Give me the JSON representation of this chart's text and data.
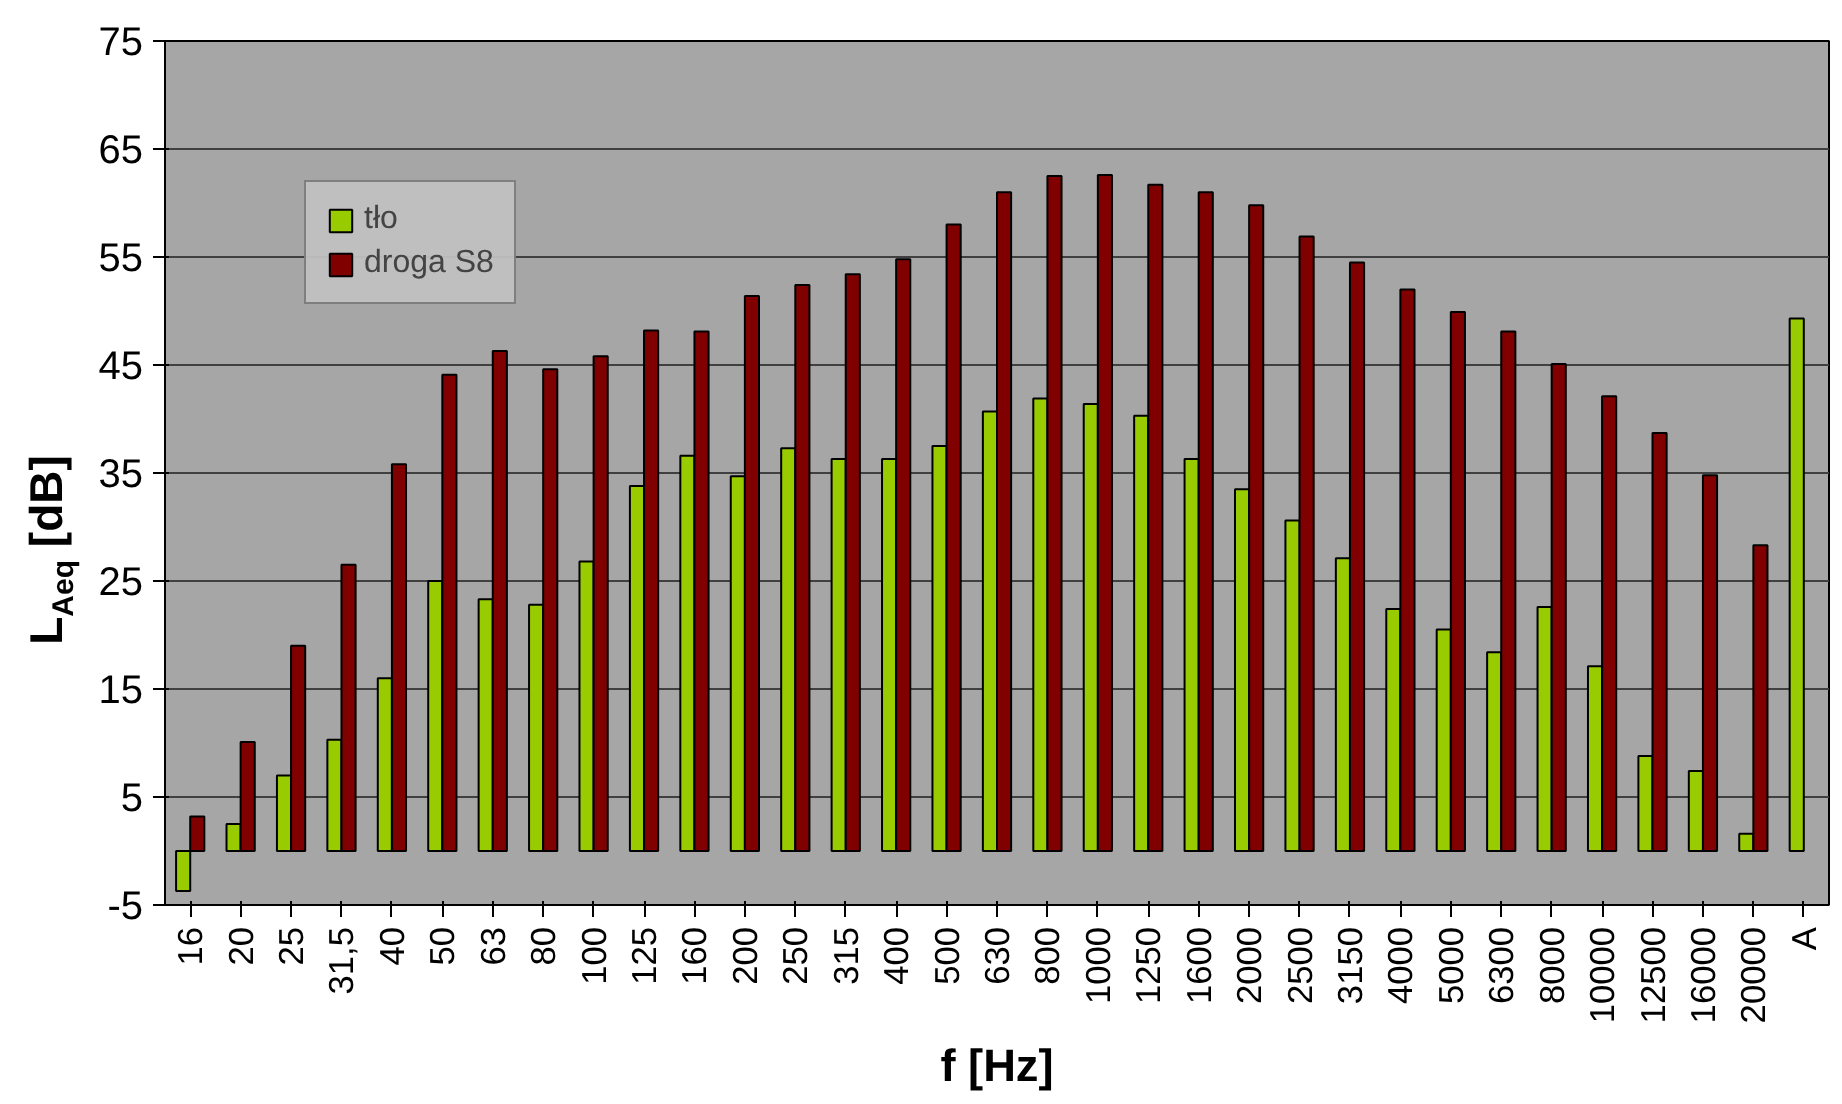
{
  "chart_data": {
    "type": "bar",
    "xlabel": "f [Hz]",
    "ylabel": "L$_{Aeq}$ [dB]",
    "categories": [
      "16",
      "20",
      "25",
      "31,5",
      "40",
      "50",
      "63",
      "80",
      "100",
      "125",
      "160",
      "200",
      "250",
      "315",
      "400",
      "500",
      "630",
      "800",
      "1000",
      "1250",
      "1600",
      "2000",
      "2500",
      "3150",
      "4000",
      "5000",
      "6300",
      "8000",
      "10000",
      "12500",
      "16000",
      "20000",
      "A"
    ],
    "series": [
      {
        "name": "tło",
        "color": "#99cc00",
        "values": [
          -3.7,
          2.5,
          7,
          10.3,
          16,
          25,
          23.3,
          22.8,
          26.8,
          33.8,
          36.6,
          34.7,
          37.3,
          36.3,
          36.3,
          37.5,
          40.7,
          41.9,
          41.4,
          40.3,
          36.3,
          33.5,
          30.6,
          27.1,
          22.4,
          20.5,
          18.4,
          22.6,
          17.1,
          8.8,
          7.4,
          1.6,
          49.3
        ]
      },
      {
        "name": "droga S8",
        "color": "#800000",
        "values": [
          3.2,
          10.1,
          19.0,
          26.5,
          35.8,
          44.1,
          46.3,
          44.6,
          45.8,
          48.2,
          48.1,
          51.4,
          52.4,
          53.4,
          54.8,
          58.0,
          61.0,
          62.5,
          62.6,
          61.7,
          61.0,
          59.8,
          56.9,
          54.5,
          52.0,
          49.9,
          48.1,
          45.1,
          42.1,
          38.7,
          34.8,
          28.3,
          null
        ]
      }
    ],
    "ylim": [
      -5,
      75
    ],
    "yticks": [
      -5,
      5,
      15,
      25,
      35,
      45,
      55,
      65,
      75
    ],
    "grid": "y",
    "legend": "top left"
  }
}
